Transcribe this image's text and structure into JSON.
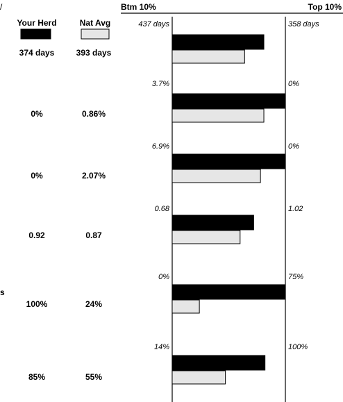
{
  "chart_data": {
    "type": "bar",
    "title": "",
    "xlabel": "",
    "ylabel": "",
    "scale_labels": {
      "bottom": "Btm 10%",
      "top": "Top 10%"
    },
    "legend": [
      {
        "name": "Your Herd",
        "color": "#000000"
      },
      {
        "name": "Nat Avg",
        "color": "#e6e6e6"
      }
    ],
    "fragments": {
      "top_left": "/",
      "row5_left": "s"
    },
    "rows": [
      {
        "herd_label": "374 days",
        "nat_label": "393 days",
        "btm": "437 days",
        "top": "358 days",
        "herd_fraction": 0.81,
        "nat_fraction": 0.64
      },
      {
        "herd_label": "0%",
        "nat_label": "0.86%",
        "btm": "3.7%",
        "top": "0%",
        "herd_fraction": 1.0,
        "nat_fraction": 0.81
      },
      {
        "herd_label": "0%",
        "nat_label": "2.07%",
        "btm": "6.9%",
        "top": "0%",
        "herd_fraction": 1.0,
        "nat_fraction": 0.78
      },
      {
        "herd_label": "0.92",
        "nat_label": "0.87",
        "btm": "0.68",
        "top": "1.02",
        "herd_fraction": 0.72,
        "nat_fraction": 0.6
      },
      {
        "herd_label": "100%",
        "nat_label": "24%",
        "btm": "0%",
        "top": "75%",
        "herd_fraction": 1.0,
        "nat_fraction": 0.24
      },
      {
        "herd_label": "85%",
        "nat_label": "55%",
        "btm": "14%",
        "top": "100%",
        "herd_fraction": 0.82,
        "nat_fraction": 0.47
      }
    ]
  }
}
